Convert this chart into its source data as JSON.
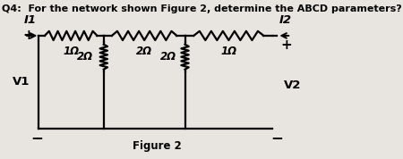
{
  "title": "Q4:  For the network shown Figure 2, determine the ABCD parameters?",
  "figure_label": "Figure 2",
  "background": "#e8e5e0",
  "resistors_series": [
    "1Ω",
    "2Ω",
    "1Ω"
  ],
  "resistors_shunt": [
    "2Ω",
    "2Ω"
  ],
  "v1_label": "V1",
  "v2_label": "V2",
  "i1_label": "I1",
  "i2_label": "I2",
  "title_fontsize": 8.0,
  "label_fontsize": 9.5,
  "res_label_fontsize": 8.5,
  "lw": 1.6
}
